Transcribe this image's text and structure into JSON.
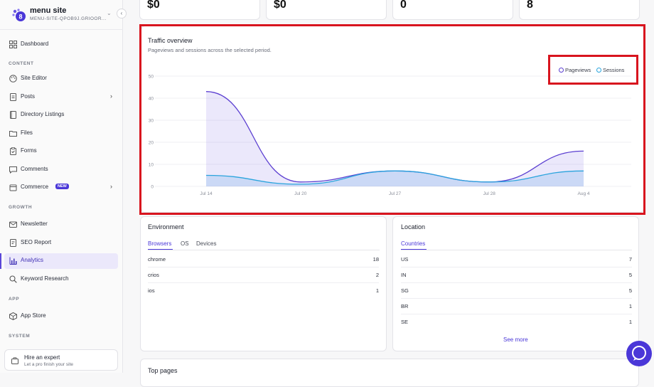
{
  "site": {
    "name": "menu site",
    "id": "MENU-SITE-QPOB9J.GRIOOR..."
  },
  "nav": {
    "dashboard": "Dashboard",
    "content_section": "CONTENT",
    "site_editor": "Site Editor",
    "posts": "Posts",
    "directory_listings": "Directory Listings",
    "files": "Files",
    "forms": "Forms",
    "comments": "Comments",
    "commerce": "Commerce",
    "new_badge": "NEW",
    "growth_section": "GROWTH",
    "newsletter": "Newsletter",
    "seo_report": "SEO Report",
    "analytics": "Analytics",
    "keyword_research": "Keyword Research",
    "app_section": "APP",
    "app_store": "App Store",
    "system_section": "SYSTEM"
  },
  "expert": {
    "title": "Hire an expert",
    "subtitle": "Let a pro finish your site"
  },
  "stats": [
    "$0",
    "$0",
    "0",
    "8"
  ],
  "traffic": {
    "title": "Traffic overview",
    "subtitle": "Pageviews and sessions across the selected period.",
    "legend": {
      "pageviews": "Pageviews",
      "sessions": "Sessions"
    }
  },
  "chart_data": {
    "type": "area",
    "x": [
      "Jul 14",
      "Jul 20",
      "Jul 27",
      "Jul 28",
      "Aug 4"
    ],
    "series": [
      {
        "name": "Pageviews",
        "values": [
          43,
          2,
          7,
          2,
          16
        ],
        "color": "#5b3fd1"
      },
      {
        "name": "Sessions",
        "values": [
          5,
          1,
          7,
          2,
          7
        ],
        "color": "#2aa4dd"
      }
    ],
    "yticks": [
      0,
      10,
      20,
      30,
      40,
      50
    ],
    "ylim": [
      0,
      50
    ],
    "grid": true,
    "legend_position": "top-right"
  },
  "environment": {
    "title": "Environment",
    "tabs": [
      "Browsers",
      "OS",
      "Devices"
    ],
    "rows": [
      {
        "k": "chrome",
        "v": "18"
      },
      {
        "k": "crios",
        "v": "2"
      },
      {
        "k": "ios",
        "v": "1"
      }
    ]
  },
  "location": {
    "title": "Location",
    "tab": "Countries",
    "rows": [
      {
        "k": "US",
        "v": "7"
      },
      {
        "k": "IN",
        "v": "5"
      },
      {
        "k": "SG",
        "v": "5"
      },
      {
        "k": "BR",
        "v": "1"
      },
      {
        "k": "SE",
        "v": "1"
      }
    ],
    "see_more": "See more"
  },
  "top_pages": {
    "title": "Top pages"
  }
}
